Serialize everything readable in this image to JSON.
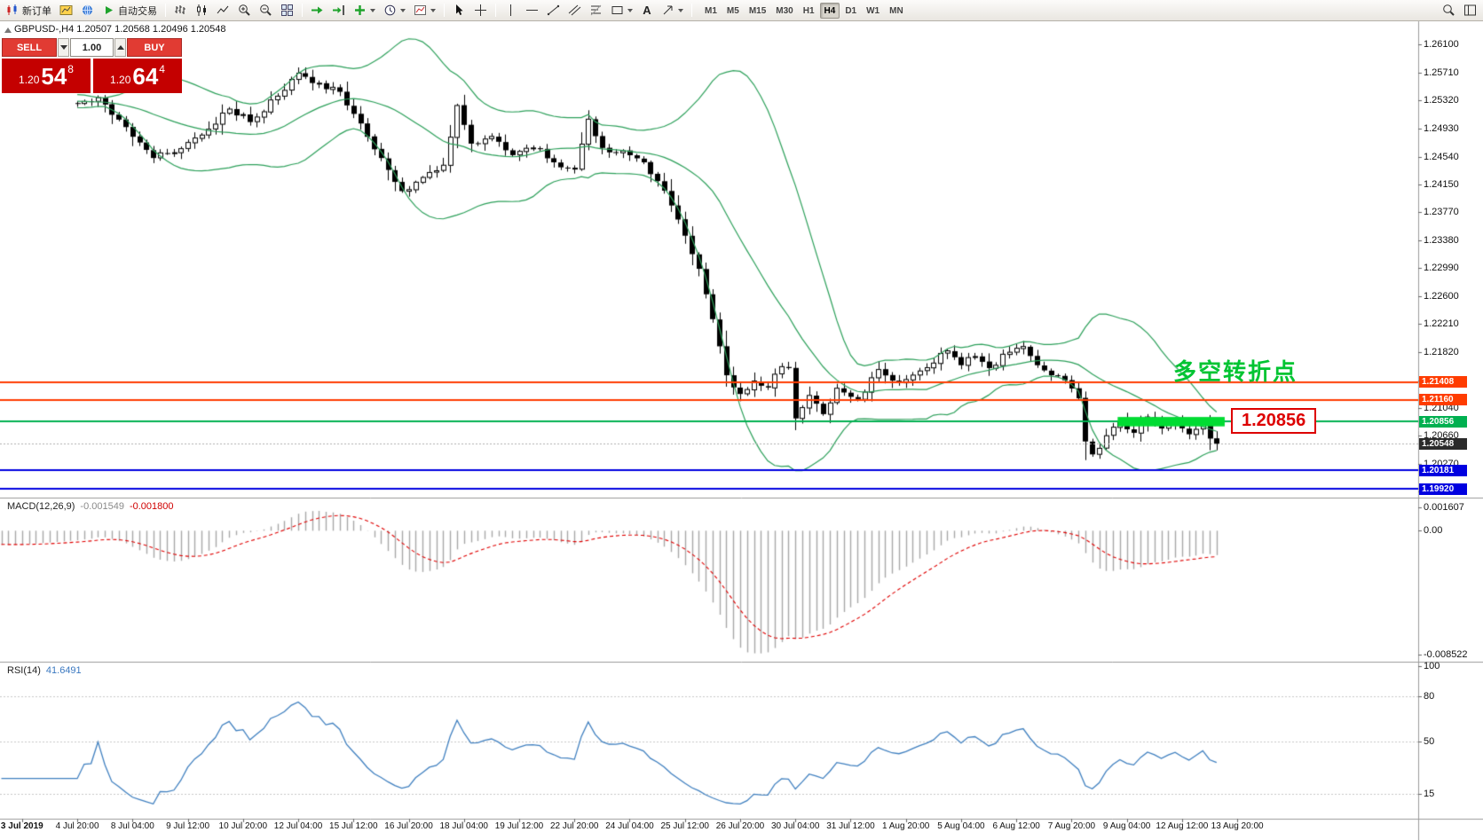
{
  "toolbar": {
    "new_order_label": "新订单",
    "autotrading_label": "自动交易",
    "text_tool_glyph": "A",
    "timeframes": [
      "M1",
      "M5",
      "M15",
      "M30",
      "H1",
      "H4",
      "D1",
      "W1",
      "MN"
    ],
    "active_timeframe": "H4"
  },
  "trade_panel": {
    "sell_label": "SELL",
    "buy_label": "BUY",
    "volume": "1.00",
    "sell_price": {
      "prefix": "1.20",
      "big": "54",
      "sup": "8"
    },
    "buy_price": {
      "prefix": "1.20",
      "big": "64",
      "sup": "4"
    }
  },
  "chart": {
    "info_line": "GBPUSD-,H4 1.20507 1.20568 1.20496 1.20548",
    "annotation": "多空转折点",
    "callout": "1.20856",
    "y_axis_labels": [
      "1.26100",
      "1.25710",
      "1.25320",
      "1.24930",
      "1.24540",
      "1.24150",
      "1.23770",
      "1.23380",
      "1.22990",
      "1.22600",
      "1.22210",
      "1.21820",
      "1.21430",
      "1.21040",
      "1.20660",
      "1.20270",
      "1.19890"
    ],
    "price_tags": [
      {
        "text": "1.21408",
        "bg": "#ff3c00"
      },
      {
        "text": "1.21160",
        "bg": "#ff3c00"
      },
      {
        "text": "1.20856",
        "bg": "#00b050"
      },
      {
        "text": "1.20181",
        "bg": "#0000e0"
      },
      {
        "text": "1.19920",
        "bg": "#0000e0"
      },
      {
        "text": "1.20548",
        "bg": "#2b2b2b"
      }
    ]
  },
  "macd": {
    "label": "MACD(12,26,9)",
    "value_main": "-0.001549",
    "value_signal": "-0.001800",
    "axis": [
      [
        "0.001607",
        0.001607
      ],
      [
        "0.00",
        0
      ],
      [
        "-0.008522",
        -0.008522
      ]
    ]
  },
  "rsi": {
    "label": "RSI(14)",
    "value": "41.6491",
    "axis": [
      [
        "100",
        100
      ],
      [
        "80",
        80
      ],
      [
        "50",
        50
      ],
      [
        "15",
        15
      ]
    ],
    "levels": [
      80,
      50,
      15
    ]
  },
  "x_axis": {
    "first_label_candle": 3,
    "candles_per_label": 8,
    "labels": [
      "3 Jul 2019",
      "4 Jul 20:00",
      "8 Jul 04:00",
      "9 Jul 12:00",
      "10 Jul 20:00",
      "12 Jul 04:00",
      "15 Jul 12:00",
      "16 Jul 20:00",
      "18 Jul 04:00",
      "19 Jul 12:00",
      "22 Jul 20:00",
      "24 Jul 04:00",
      "25 Jul 12:00",
      "26 Jul 20:00",
      "30 Jul 04:00",
      "31 Jul 12:00",
      "1 Aug 20:00",
      "5 Aug 04:00",
      "6 Aug 12:00",
      "7 Aug 20:00",
      "9 Aug 04:00",
      "12 Aug 12:00",
      "13 Aug 20:00"
    ]
  },
  "chart_data": {
    "type": "candlestick",
    "symbol": "GBPUSD-",
    "timeframe": "H4",
    "candle_count": 177,
    "visible_from_candle": 11,
    "last_close": 1.20548,
    "close_anchors": [
      [
        11,
        1.2528
      ],
      [
        14,
        1.2536
      ],
      [
        18,
        1.2495
      ],
      [
        22,
        1.2452
      ],
      [
        26,
        1.2465
      ],
      [
        30,
        1.2492
      ],
      [
        33,
        1.252
      ],
      [
        36,
        1.2502
      ],
      [
        40,
        1.2538
      ],
      [
        43,
        1.257
      ],
      [
        46,
        1.2556
      ],
      [
        49,
        1.2544
      ],
      [
        52,
        1.25
      ],
      [
        55,
        1.2452
      ],
      [
        58,
        1.2406
      ],
      [
        61,
        1.2425
      ],
      [
        64,
        1.2442
      ],
      [
        66,
        1.2525
      ],
      [
        68,
        1.2472
      ],
      [
        71,
        1.2482
      ],
      [
        74,
        1.2456
      ],
      [
        77,
        1.2466
      ],
      [
        80,
        1.2446
      ],
      [
        83,
        1.2436
      ],
      [
        85,
        1.2506
      ],
      [
        87,
        1.2466
      ],
      [
        90,
        1.2462
      ],
      [
        93,
        1.2446
      ],
      [
        95,
        1.242
      ],
      [
        97,
        1.2386
      ],
      [
        99,
        1.2344
      ],
      [
        101,
        1.2298
      ],
      [
        103,
        1.2228
      ],
      [
        105,
        1.215
      ],
      [
        107,
        1.2124
      ],
      [
        109,
        1.2142
      ],
      [
        111,
        1.2133
      ],
      [
        113,
        1.2162
      ],
      [
        114,
        1.216
      ],
      [
        115,
        1.209
      ],
      [
        117,
        1.2122
      ],
      [
        119,
        1.2096
      ],
      [
        121,
        1.2132
      ],
      [
        124,
        1.2117
      ],
      [
        127,
        1.2158
      ],
      [
        130,
        1.214
      ],
      [
        133,
        1.2156
      ],
      [
        137,
        1.2184
      ],
      [
        139,
        1.2164
      ],
      [
        141,
        1.2176
      ],
      [
        143,
        1.216
      ],
      [
        146,
        1.2182
      ],
      [
        148,
        1.219
      ],
      [
        150,
        1.2164
      ],
      [
        152,
        1.215
      ],
      [
        154,
        1.2143
      ],
      [
        156,
        1.2118
      ],
      [
        157,
        1.2058
      ],
      [
        158,
        1.204
      ],
      [
        160,
        1.2066
      ],
      [
        162,
        1.2086
      ],
      [
        164,
        1.207
      ],
      [
        166,
        1.2092
      ],
      [
        168,
        1.2076
      ],
      [
        170,
        1.2086
      ],
      [
        172,
        1.2068
      ],
      [
        174,
        1.2082
      ],
      [
        175,
        1.2062
      ],
      [
        176,
        1.20548
      ]
    ],
    "bollinger": {
      "period": 20,
      "deviation": 2
    },
    "indicators": {
      "macd": [
        12,
        26,
        9
      ],
      "rsi": 14
    },
    "objects": {
      "hlines": [
        {
          "price": 1.21408,
          "color": "#ff3c00",
          "width": 2
        },
        {
          "price": 1.2116,
          "color": "#ff3c00",
          "width": 2
        },
        {
          "price": 1.20856,
          "color": "#00b050",
          "width": 2
        },
        {
          "price": 1.20181,
          "color": "#0000e0",
          "width": 2
        },
        {
          "price": 1.1992,
          "color": "#0000e0",
          "width": 2
        }
      ],
      "rectangle": {
        "from_candle": 162,
        "to_candle": 177.5,
        "top_price": 1.2092,
        "bottom_price": 1.2079,
        "color": "#00dc32"
      },
      "bid_line": {
        "price": 1.20548,
        "color": "#b0b0b0"
      }
    },
    "colors": {
      "up_candle": "#ffffff",
      "down_candle": "#000000",
      "outline": "#000000",
      "bollinger": "#2ca05a",
      "macd_histogram": "#a8a8a8",
      "macd_signal": "#e00000",
      "rsi_line": "#4080c0"
    }
  }
}
